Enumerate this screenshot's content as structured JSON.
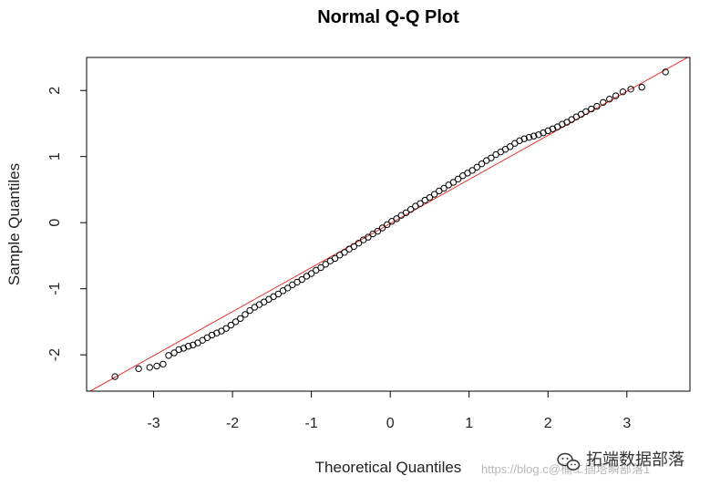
{
  "chart_data": {
    "type": "scatter",
    "title": "Normal Q-Q Plot",
    "xlabel": "Theoretical Quantiles",
    "ylabel": "Sample Quantiles",
    "xlim": [
      -3.85,
      3.8
    ],
    "ylim": [
      -2.55,
      2.5
    ],
    "xticks": [
      -3,
      -2,
      -1,
      0,
      1,
      2,
      3
    ],
    "yticks": [
      -2,
      -1,
      0,
      1,
      2
    ],
    "xtick_labels": [
      "-3",
      "-2",
      "-1",
      "0",
      "1",
      "2",
      "3"
    ],
    "ytick_labels": [
      "-2",
      "-1",
      "0",
      "1",
      "2"
    ],
    "grid": false,
    "reference_line": {
      "x": [
        -3.85,
        3.8
      ],
      "y": [
        -2.58,
        2.52
      ],
      "color": "#e8332a"
    },
    "series": [
      {
        "marker": "open-circle",
        "color": "#000000",
        "points": [
          [
            -3.49,
            -2.33
          ],
          [
            -3.19,
            -2.21
          ],
          [
            -3.05,
            -2.19
          ],
          [
            -2.96,
            -2.17
          ],
          [
            -2.88,
            -2.14
          ],
          [
            -2.81,
            -2.01
          ],
          [
            -2.74,
            -1.97
          ],
          [
            -2.68,
            -1.92
          ],
          [
            -2.62,
            -1.9
          ],
          [
            -2.56,
            -1.87
          ],
          [
            -2.5,
            -1.85
          ],
          [
            -2.44,
            -1.82
          ],
          [
            -2.38,
            -1.78
          ],
          [
            -2.32,
            -1.74
          ],
          [
            -2.26,
            -1.7
          ],
          [
            -2.2,
            -1.67
          ],
          [
            -2.14,
            -1.64
          ],
          [
            -2.08,
            -1.6
          ],
          [
            -2.02,
            -1.55
          ],
          [
            -1.96,
            -1.5
          ],
          [
            -1.9,
            -1.45
          ],
          [
            -1.84,
            -1.39
          ],
          [
            -1.78,
            -1.33
          ],
          [
            -1.72,
            -1.28
          ],
          [
            -1.66,
            -1.24
          ],
          [
            -1.6,
            -1.2
          ],
          [
            -1.54,
            -1.16
          ],
          [
            -1.48,
            -1.12
          ],
          [
            -1.42,
            -1.08
          ],
          [
            -1.36,
            -1.03
          ],
          [
            -1.3,
            -0.99
          ],
          [
            -1.24,
            -0.94
          ],
          [
            -1.18,
            -0.9
          ],
          [
            -1.12,
            -0.86
          ],
          [
            -1.06,
            -0.81
          ],
          [
            -1.0,
            -0.77
          ],
          [
            -0.94,
            -0.72
          ],
          [
            -0.88,
            -0.68
          ],
          [
            -0.82,
            -0.63
          ],
          [
            -0.76,
            -0.58
          ],
          [
            -0.7,
            -0.54
          ],
          [
            -0.64,
            -0.49
          ],
          [
            -0.58,
            -0.45
          ],
          [
            -0.52,
            -0.4
          ],
          [
            -0.46,
            -0.36
          ],
          [
            -0.4,
            -0.31
          ],
          [
            -0.34,
            -0.26
          ],
          [
            -0.28,
            -0.22
          ],
          [
            -0.22,
            -0.17
          ],
          [
            -0.16,
            -0.13
          ],
          [
            -0.1,
            -0.08
          ],
          [
            -0.04,
            -0.03
          ],
          [
            0.02,
            0.02
          ],
          [
            0.08,
            0.06
          ],
          [
            0.14,
            0.11
          ],
          [
            0.2,
            0.15
          ],
          [
            0.26,
            0.2
          ],
          [
            0.32,
            0.25
          ],
          [
            0.38,
            0.29
          ],
          [
            0.44,
            0.34
          ],
          [
            0.5,
            0.38
          ],
          [
            0.56,
            0.43
          ],
          [
            0.62,
            0.48
          ],
          [
            0.68,
            0.52
          ],
          [
            0.74,
            0.57
          ],
          [
            0.8,
            0.61
          ],
          [
            0.86,
            0.66
          ],
          [
            0.92,
            0.71
          ],
          [
            0.98,
            0.75
          ],
          [
            1.04,
            0.79
          ],
          [
            1.1,
            0.84
          ],
          [
            1.16,
            0.89
          ],
          [
            1.22,
            0.94
          ],
          [
            1.28,
            0.98
          ],
          [
            1.34,
            1.03
          ],
          [
            1.4,
            1.07
          ],
          [
            1.46,
            1.11
          ],
          [
            1.52,
            1.15
          ],
          [
            1.58,
            1.2
          ],
          [
            1.64,
            1.24
          ],
          [
            1.7,
            1.27
          ],
          [
            1.76,
            1.29
          ],
          [
            1.82,
            1.31
          ],
          [
            1.88,
            1.33
          ],
          [
            1.94,
            1.36
          ],
          [
            2.0,
            1.39
          ],
          [
            2.06,
            1.42
          ],
          [
            2.12,
            1.45
          ],
          [
            2.18,
            1.49
          ],
          [
            2.24,
            1.52
          ],
          [
            2.3,
            1.56
          ],
          [
            2.36,
            1.6
          ],
          [
            2.42,
            1.64
          ],
          [
            2.48,
            1.68
          ],
          [
            2.55,
            1.72
          ],
          [
            2.62,
            1.76
          ],
          [
            2.7,
            1.82
          ],
          [
            2.78,
            1.87
          ],
          [
            2.86,
            1.92
          ],
          [
            2.95,
            1.98
          ],
          [
            3.05,
            2.02
          ],
          [
            3.19,
            2.05
          ],
          [
            3.49,
            2.28
          ]
        ]
      }
    ]
  },
  "watermark": {
    "text": "拓端数据部落",
    "url_text": "https://blog.c@桶エ掴塔瞬部落1",
    "icon": "wechat-icon"
  }
}
